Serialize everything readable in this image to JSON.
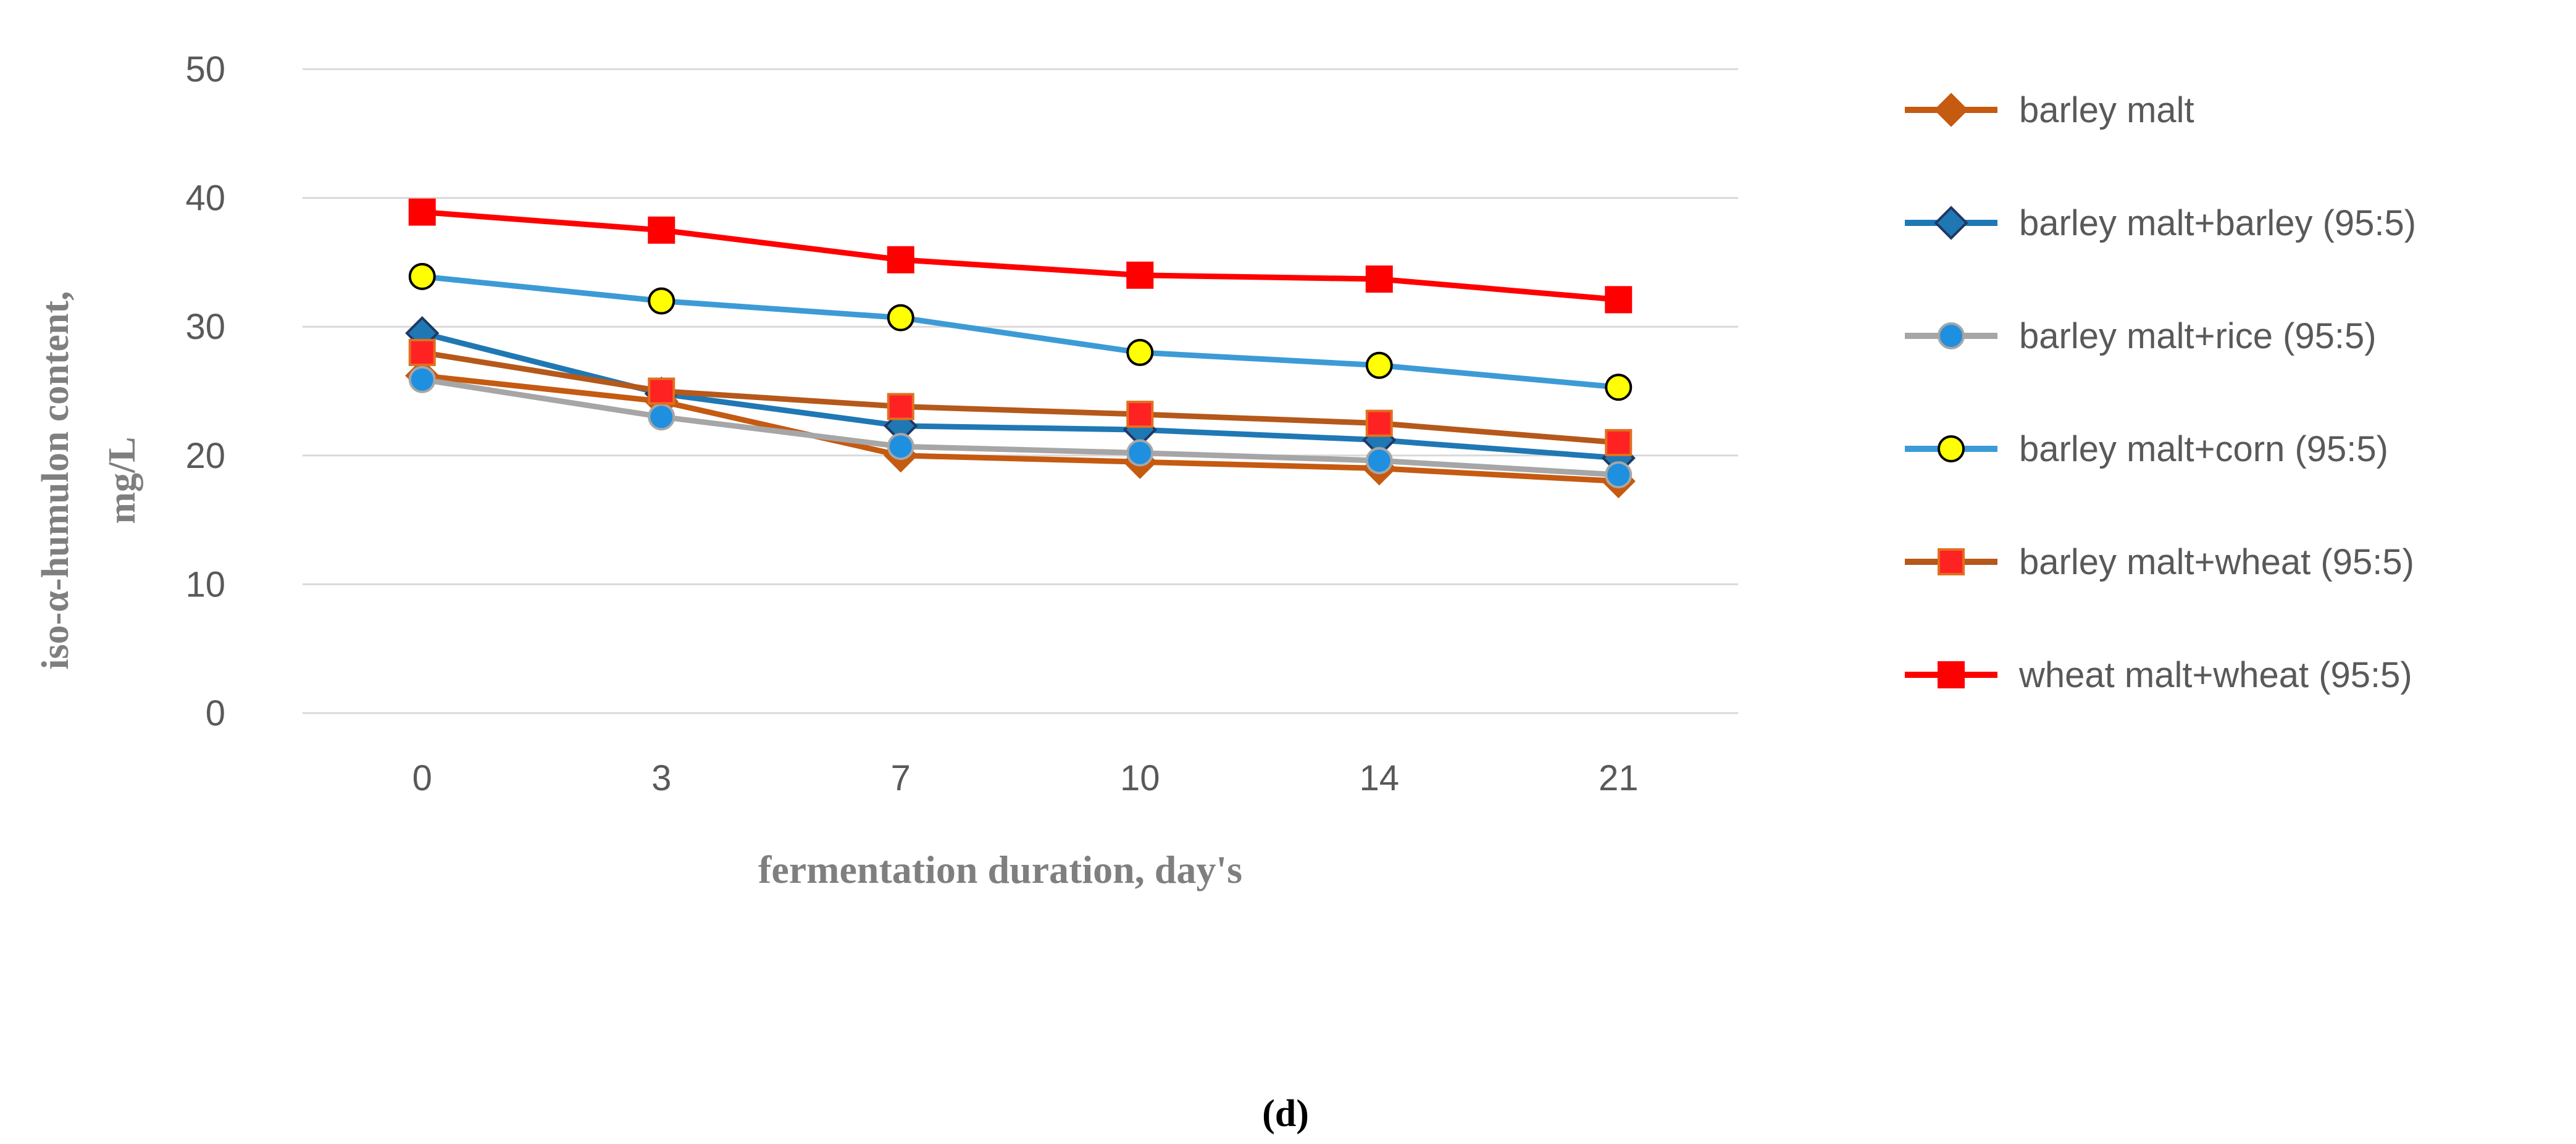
{
  "figure_label": "(d)",
  "chart_data": {
    "type": "line",
    "title": "",
    "xlabel": "fermentation duration, day's",
    "ylabel": "iso-α-humulon content, mg/L",
    "ylabel_line1": "iso-α-humulon content,",
    "ylabel_line2": "mg/L",
    "categories": [
      "0",
      "3",
      "7",
      "10",
      "14",
      "21"
    ],
    "ylim": [
      0,
      50
    ],
    "yticks": [
      0,
      10,
      20,
      30,
      40,
      50
    ],
    "ytick_labels": [
      "0",
      "10",
      "20",
      "30",
      "40",
      "50"
    ],
    "grid": true,
    "legend_position": "right",
    "series": [
      {
        "name": "barley malt",
        "color": "#C55A11",
        "marker": "diamond",
        "marker_fill": "#C55A11",
        "marker_stroke": "#C55A11",
        "values": [
          26.2,
          24.2,
          20.0,
          19.5,
          19.0,
          18.0
        ]
      },
      {
        "name": "barley malt+barley (95:5)",
        "color": "#1F78B4",
        "marker": "diamond",
        "marker_fill": "#1F78B4",
        "marker_stroke": "#1F3864",
        "values": [
          29.5,
          24.8,
          22.3,
          22.0,
          21.2,
          19.8
        ]
      },
      {
        "name": "barley malt+rice (95:5)",
        "color": "#A6A6A6",
        "marker": "circle",
        "marker_fill": "#1F8FE0",
        "marker_stroke": "#A6A6A6",
        "values": [
          25.9,
          23.0,
          20.7,
          20.2,
          19.6,
          18.5
        ]
      },
      {
        "name": "barley malt+corn (95:5)",
        "color": "#3C9BD6",
        "marker": "circle",
        "marker_fill": "#FFFF00",
        "marker_stroke": "#000000",
        "values": [
          33.9,
          32.0,
          30.7,
          28.0,
          27.0,
          25.3
        ]
      },
      {
        "name": "barley malt+wheat (95:5)",
        "color": "#B5581A",
        "marker": "square",
        "marker_fill": "#FF2222",
        "marker_stroke": "#E07020",
        "values": [
          28.0,
          25.0,
          23.8,
          23.2,
          22.5,
          21.0
        ]
      },
      {
        "name": "wheat malt+wheat (95:5)",
        "color": "#FF0000",
        "marker": "square",
        "marker_fill": "#FF0000",
        "marker_stroke": "#FF0000",
        "values": [
          38.9,
          37.5,
          35.2,
          34.0,
          33.7,
          32.1
        ]
      }
    ]
  },
  "colors": {
    "gridline": "#D9D9D9",
    "axis_text": "#595959",
    "title_text": "#7F7F7F"
  }
}
